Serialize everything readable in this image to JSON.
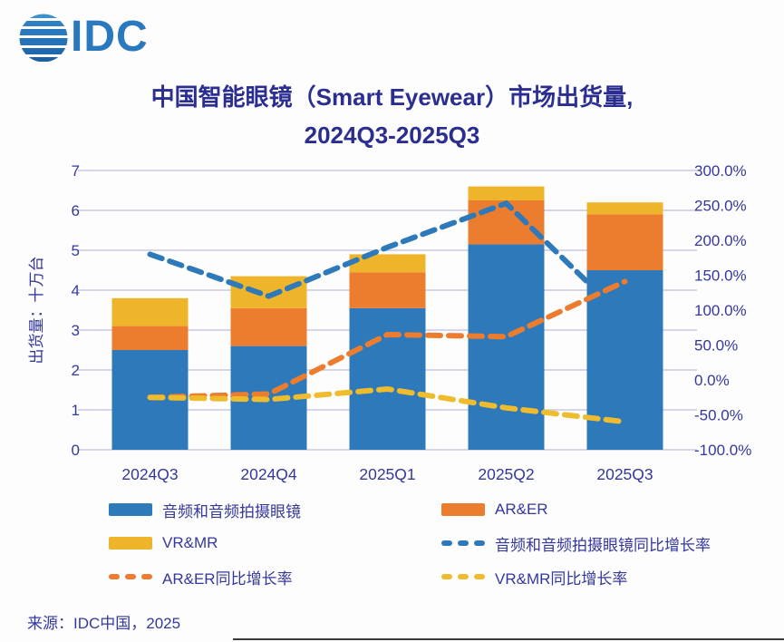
{
  "logo": {
    "text": "IDC"
  },
  "title": {
    "line1": "中国智能眼镜（Smart Eyewear）市场出货量,",
    "line2": "2024Q3-2025Q3"
  },
  "source": "来源：IDC中国，2025",
  "colors": {
    "bar_blue": "#2E79BA",
    "bar_orange": "#ED7D2E",
    "bar_yellow": "#EFB52A",
    "line_blue": "#2E79BA",
    "line_orange": "#ED7D2E",
    "line_yellow": "#EFBC2D",
    "text_navy": "#35389B",
    "title_navy": "#2B2E90",
    "gridline": "#C9C8E6",
    "background": "#FDFDFE",
    "divider": "#3A3A3A"
  },
  "chart_data": {
    "type": "combo-stacked-bar-line",
    "title": "中国智能眼镜（Smart Eyewear）市场出货量, 2024Q3-2025Q3",
    "categories": [
      "2024Q3",
      "2024Q4",
      "2025Q1",
      "2025Q2",
      "2025Q3"
    ],
    "bar_series": [
      {
        "key": "audio-glasses",
        "name": "音频和音频拍摄眼镜",
        "color": "#2E79BA",
        "axis": "left",
        "values": [
          2.5,
          2.6,
          3.55,
          5.15,
          4.5
        ]
      },
      {
        "key": "ar-er",
        "name": "AR&ER",
        "color": "#ED7D2E",
        "axis": "left",
        "values": [
          0.6,
          0.95,
          0.9,
          1.1,
          1.4
        ]
      },
      {
        "key": "vr-mr",
        "name": "VR&MR",
        "color": "#EFB52A",
        "axis": "left",
        "values": [
          0.7,
          0.8,
          0.45,
          0.35,
          0.3
        ]
      }
    ],
    "line_series": [
      {
        "key": "audio-glasses-yoy",
        "name": "音频和音频拍摄眼镜同比增长率",
        "color": "#2E79BA",
        "axis": "right",
        "style": "dashed",
        "values": [
          180,
          120,
          190,
          253,
          88
        ]
      },
      {
        "key": "ar-er-yoy",
        "name": "AR&ER同比增长率",
        "color": "#ED7D2E",
        "axis": "right",
        "style": "dashed",
        "values": [
          -25,
          -20,
          65,
          62,
          141
        ]
      },
      {
        "key": "vr-mr-yoy",
        "name": "VR&MR同比增长率",
        "color": "#EFBC2D",
        "axis": "right",
        "style": "dashed",
        "values": [
          -25,
          -28,
          -13,
          -40,
          -60
        ]
      }
    ],
    "left_axis": {
      "label": "出货量：十万台",
      "min": 0,
      "max": 7,
      "ticks": [
        0,
        1,
        2,
        3,
        4,
        5,
        6,
        7
      ]
    },
    "right_axis": {
      "min": -100,
      "max": 300,
      "ticks": [
        -100,
        -50,
        0,
        50,
        100,
        150,
        200,
        250,
        300
      ],
      "tick_labels": [
        "-100.0%",
        "-50.0%",
        "0.0%",
        "50.0%",
        "100.0%",
        "150.0%",
        "200.0%",
        "250.0%",
        "300.0%"
      ]
    },
    "grid": "horizontal",
    "legend_position": "bottom"
  }
}
